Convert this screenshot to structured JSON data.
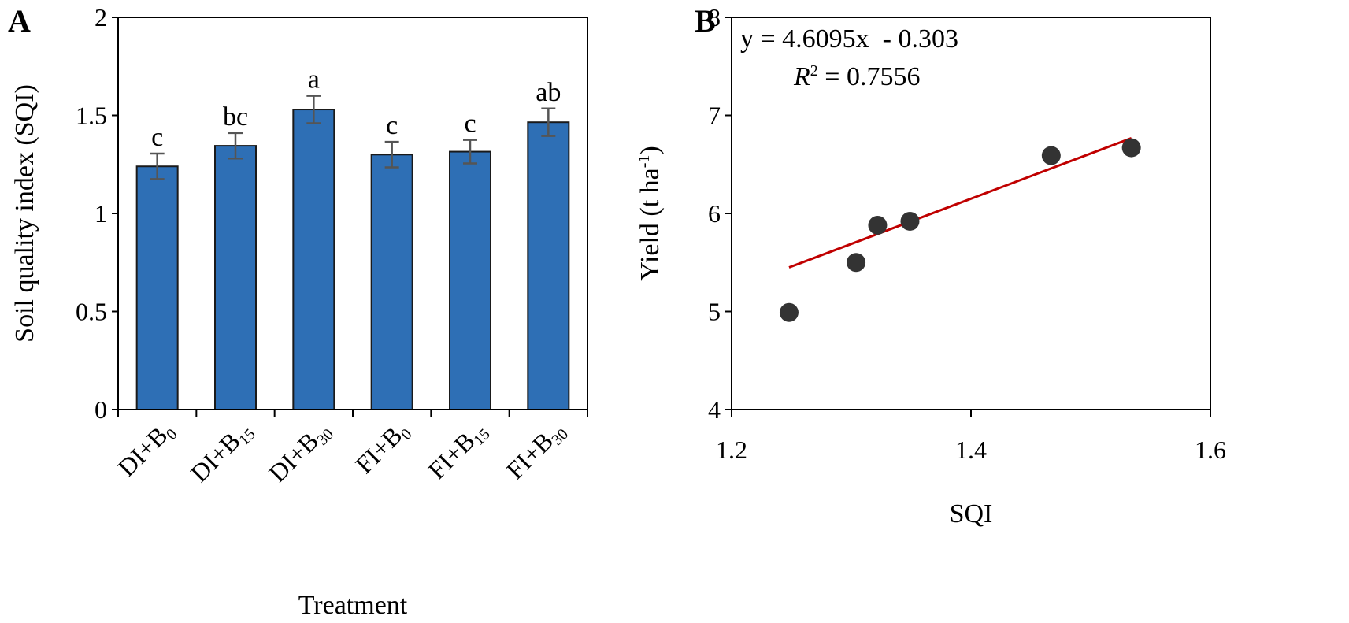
{
  "colors": {
    "bar": "#2e6fb5",
    "bar_edge": "#1a1a1a",
    "error": "#555555",
    "point": "#333333",
    "fit": "#c00000",
    "axis": "#000000"
  },
  "chart_data": [
    {
      "panel": "A",
      "type": "bar",
      "title": "",
      "xlabel": "Treatment",
      "ylabel": "Soil quality index (SQI)",
      "ylim": [
        0,
        2
      ],
      "yticks": [
        "0",
        "0.5",
        "1",
        "1.5",
        "2"
      ],
      "categories": [
        {
          "base": "DI+B",
          "sub": "0"
        },
        {
          "base": "DI+B",
          "sub": "15"
        },
        {
          "base": "DI+B",
          "sub": "30"
        },
        {
          "base": "FI+B",
          "sub": "0"
        },
        {
          "base": "FI+B",
          "sub": "15"
        },
        {
          "base": "FI+B",
          "sub": "30"
        }
      ],
      "values": [
        1.24,
        1.345,
        1.53,
        1.3,
        1.315,
        1.465
      ],
      "errors": [
        0.065,
        0.065,
        0.07,
        0.065,
        0.06,
        0.07
      ],
      "letters": [
        "c",
        "bc",
        "a",
        "c",
        "c",
        "ab"
      ]
    },
    {
      "panel": "B",
      "type": "scatter",
      "xlabel": "SQI",
      "ylabel": {
        "main": "Yield (t ha",
        "sup": "-1",
        "close": ")"
      },
      "xlim": [
        1.2,
        1.6
      ],
      "ylim": [
        4,
        8
      ],
      "xticks": [
        "1.2",
        "1.4",
        "1.6"
      ],
      "yticks": [
        "4",
        "5",
        "6",
        "7",
        "8"
      ],
      "points": [
        {
          "x": 1.248,
          "y": 4.99
        },
        {
          "x": 1.304,
          "y": 5.5
        },
        {
          "x": 1.322,
          "y": 5.88
        },
        {
          "x": 1.349,
          "y": 5.92
        },
        {
          "x": 1.467,
          "y": 6.59
        },
        {
          "x": 1.534,
          "y": 6.67
        }
      ],
      "fit": {
        "slope": 4.6095,
        "intercept": -0.303,
        "x_range": [
          1.248,
          1.534
        ]
      },
      "equation": "y = 4.6095x  - 0.303",
      "r2_label": "R",
      "r2_sup": "2",
      "r2_value": " = 0.7556"
    }
  ]
}
